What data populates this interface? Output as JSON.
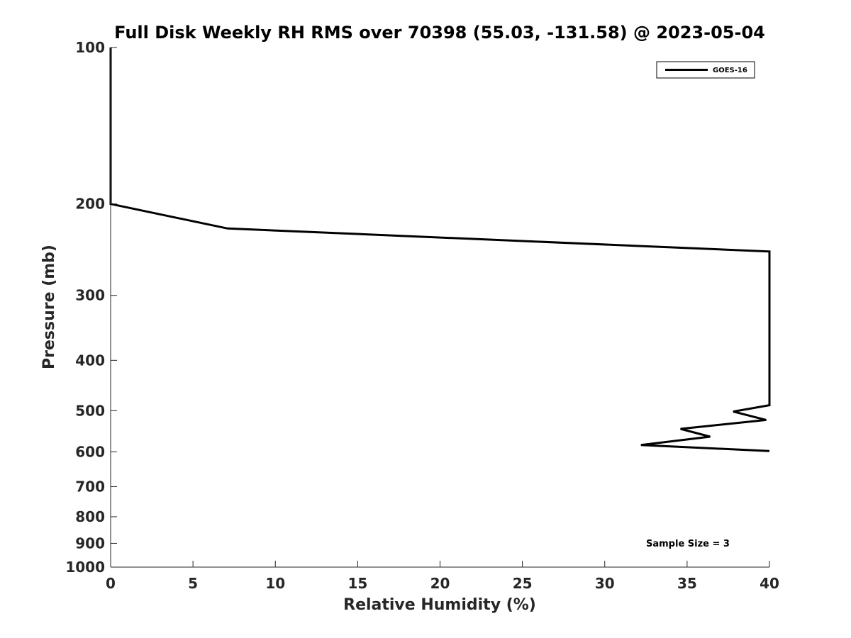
{
  "chart_data": {
    "type": "line",
    "title": "Full Disk Weekly RH RMS over 70398 (55.03, -131.58) @ 2023-05-04",
    "xlabel": "Relative Humidity (%)",
    "ylabel": "Pressure (mb)",
    "xlim": [
      0,
      40
    ],
    "ylim": [
      100,
      1000
    ],
    "yscale": "log",
    "y_reversed": true,
    "grid": false,
    "xticks": [
      0,
      5,
      10,
      15,
      20,
      25,
      30,
      35,
      40
    ],
    "yticks": [
      100,
      200,
      300,
      400,
      500,
      600,
      700,
      800,
      900,
      1000
    ],
    "legend_position": "top-right",
    "annotation": "Sample Size = 3",
    "series": [
      {
        "name": "GOES-16",
        "color": "#000000",
        "x": [
          0.0,
          0.0,
          0.0,
          0.0,
          7.1,
          40.0,
          40.0,
          37.8,
          39.8,
          34.6,
          36.4,
          32.2,
          40.0
        ],
        "y": [
          100,
          150,
          180,
          200,
          223,
          247,
          488,
          502,
          521,
          542,
          561,
          582,
          598
        ]
      }
    ]
  }
}
